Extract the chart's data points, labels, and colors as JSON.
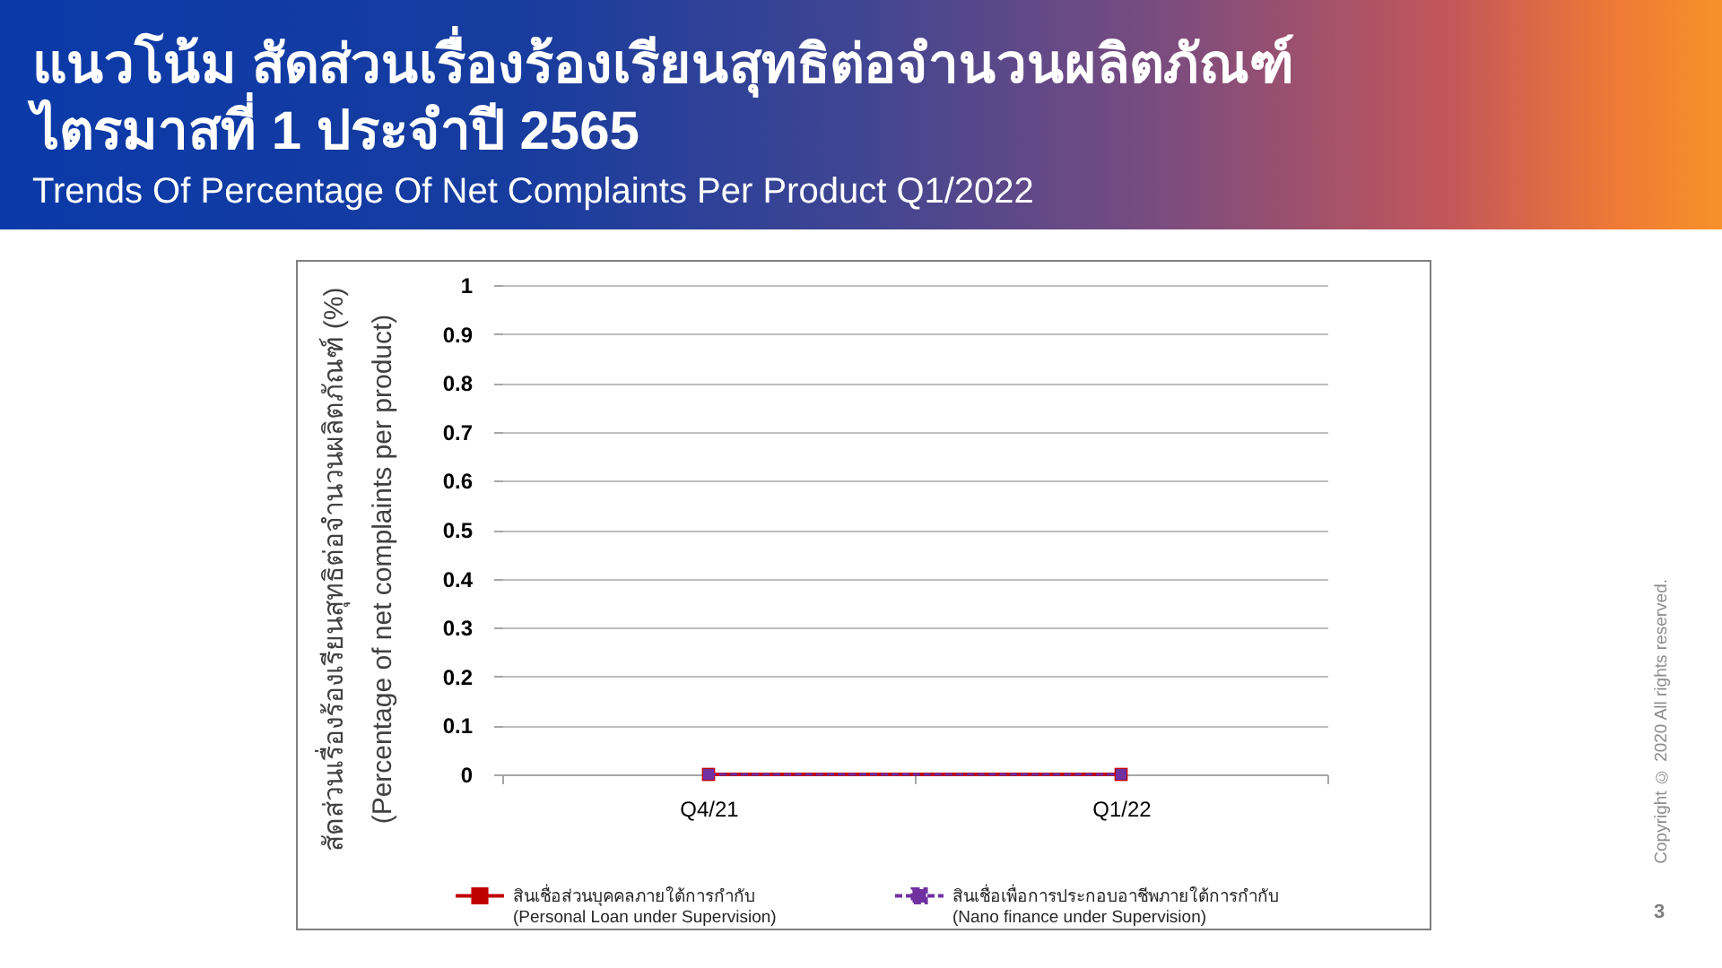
{
  "chart_data": {
    "type": "line",
    "title": "แนวโน้ม สัดส่วนเรื่องร้องเรียนสุทธิต่อจำนวนผลิตภัณฑ์ ไตรมาสที่ 1 ประจำปี 2565",
    "subtitle": "Trends Of Percentage Of Net Complaints Per Product Q1/2022",
    "ylabel": "สัดส่วนเรื่องร้องเรียนสุทธิต่อจำนวนผลิตภัณฑ์ (%)\n(Percentage of net complaints per product)",
    "categories": [
      "Q4/21",
      "Q1/22"
    ],
    "series": [
      {
        "name": "สินเชื่อส่วนบุคคลภายใต้การกำกับ\n(Personal Loan under Supervision)",
        "color": "#c00000",
        "values": [
          0,
          0
        ],
        "line_style": "solid"
      },
      {
        "name": "สินเชื่อเพื่อการประกอบอาชีพภายใต้การกำกับ\n(Nano finance under Supervision)",
        "color": "#7030a0",
        "values": [
          0,
          0
        ],
        "line_style": "dashed"
      }
    ],
    "ylim": [
      0,
      1
    ],
    "yticks": [
      0,
      0.1,
      0.2,
      0.3,
      0.4,
      0.5,
      0.6,
      0.7,
      0.8,
      0.9,
      1
    ],
    "grid": "y",
    "legend": "bottom",
    "marker": "square",
    "annotations": [
      "Copyright © 2020 All rights reserved.",
      "3"
    ]
  }
}
